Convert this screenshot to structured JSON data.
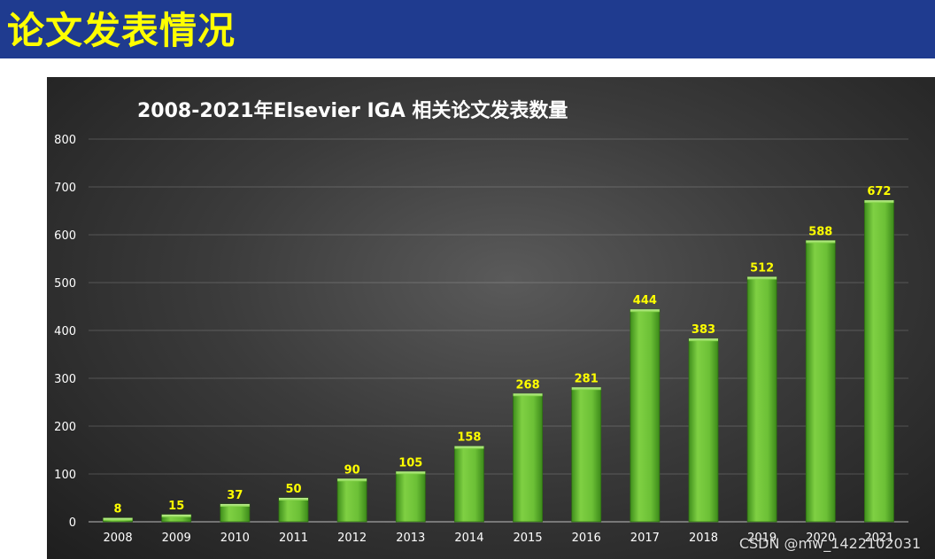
{
  "header": {
    "title": "论文发表情况"
  },
  "watermark": "CSDN @mw_1422102031",
  "colors": {
    "header_bg": "#1f3b8f",
    "header_text": "#ffff00",
    "bar": "#66b832",
    "data_label": "#ffff00",
    "axis_text": "#ffffff"
  },
  "chart_data": {
    "type": "bar",
    "title": "2008-2021年Elsevier IGA 相关论文发表数量",
    "xlabel": "",
    "ylabel": "",
    "categories": [
      "2008",
      "2009",
      "2010",
      "2011",
      "2012",
      "2013",
      "2014",
      "2015",
      "2016",
      "2017",
      "2018",
      "2019",
      "2020",
      "2021"
    ],
    "values": [
      8,
      15,
      37,
      50,
      90,
      105,
      158,
      268,
      281,
      444,
      383,
      512,
      588,
      672
    ],
    "ylim": [
      0,
      800
    ],
    "yticks": [
      0,
      100,
      200,
      300,
      400,
      500,
      600,
      700,
      800
    ],
    "grid": true,
    "data_labels": true
  }
}
